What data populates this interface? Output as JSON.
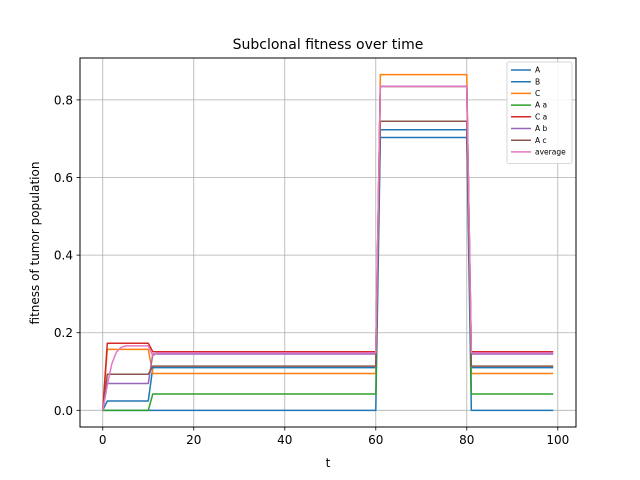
{
  "chart_data": {
    "type": "line",
    "title": "Subclonal fitness over time",
    "xlabel": "t",
    "ylabel": "fitness of tumor population",
    "xlim": [
      -5,
      104
    ],
    "ylim": [
      -0.043,
      0.908
    ],
    "xticks": [
      0,
      20,
      40,
      60,
      80,
      100
    ],
    "yticks": [
      0.0,
      0.2,
      0.4,
      0.6,
      0.8
    ],
    "ytick_labels": [
      "0.0",
      "0.2",
      "0.4",
      "0.6",
      "0.8"
    ],
    "grid": true,
    "legend_position": "top-right",
    "series": [
      {
        "name": "A",
        "color": "#1f77b4",
        "points": [
          [
            0,
            0
          ],
          [
            1,
            0.024
          ],
          [
            10,
            0.024
          ],
          [
            11,
            0.11
          ],
          [
            60,
            0.11
          ],
          [
            61,
            0.723
          ],
          [
            80,
            0.723
          ],
          [
            81,
            0.11
          ],
          [
            99,
            0.11
          ]
        ]
      },
      {
        "name": "B",
        "color": "#1f77b4",
        "points": [
          [
            0,
            0
          ],
          [
            1,
            0
          ],
          [
            60,
            0
          ],
          [
            61,
            0.703
          ],
          [
            80,
            0.703
          ],
          [
            81,
            0
          ],
          [
            99,
            0
          ]
        ]
      },
      {
        "name": "C",
        "color": "#ff7f0e",
        "points": [
          [
            0,
            0
          ],
          [
            1,
            0.157
          ],
          [
            10,
            0.157
          ],
          [
            11,
            0.095
          ],
          [
            60,
            0.095
          ],
          [
            61,
            0.865
          ],
          [
            80,
            0.865
          ],
          [
            81,
            0.095
          ],
          [
            99,
            0.095
          ]
        ]
      },
      {
        "name": "A a",
        "color": "#2ca02c",
        "points": [
          [
            0,
            0
          ],
          [
            10,
            0
          ],
          [
            11,
            0.042
          ],
          [
            60,
            0.042
          ],
          [
            61,
            0.835
          ],
          [
            80,
            0.835
          ],
          [
            81,
            0.042
          ],
          [
            99,
            0.042
          ]
        ]
      },
      {
        "name": "C a",
        "color": "#d62728",
        "points": [
          [
            0,
            0
          ],
          [
            1,
            0.173
          ],
          [
            10,
            0.173
          ],
          [
            11,
            0.151
          ],
          [
            60,
            0.151
          ],
          [
            61,
            0.835
          ],
          [
            80,
            0.835
          ],
          [
            81,
            0.151
          ],
          [
            99,
            0.151
          ]
        ]
      },
      {
        "name": "A b",
        "color": "#9467bd",
        "points": [
          [
            0,
            0
          ],
          [
            1,
            0.069
          ],
          [
            10,
            0.069
          ],
          [
            11,
            0.145
          ],
          [
            60,
            0.145
          ],
          [
            61,
            0.835
          ],
          [
            80,
            0.835
          ],
          [
            81,
            0.145
          ],
          [
            99,
            0.145
          ]
        ]
      },
      {
        "name": "A c",
        "color": "#8c564b",
        "points": [
          [
            0,
            0
          ],
          [
            1,
            0.093
          ],
          [
            10,
            0.093
          ],
          [
            11,
            0.114
          ],
          [
            60,
            0.114
          ],
          [
            61,
            0.745
          ],
          [
            80,
            0.745
          ],
          [
            81,
            0.114
          ],
          [
            99,
            0.114
          ]
        ]
      },
      {
        "name": "average",
        "color": "#e377c2",
        "points": [
          [
            0,
            0
          ],
          [
            1,
            0.065
          ],
          [
            2,
            0.12
          ],
          [
            3,
            0.15
          ],
          [
            4,
            0.162
          ],
          [
            5,
            0.166
          ],
          [
            10,
            0.166
          ],
          [
            11,
            0.14
          ],
          [
            12,
            0.148
          ],
          [
            60,
            0.148
          ],
          [
            61,
            0.835
          ],
          [
            80,
            0.835
          ],
          [
            81,
            0.148
          ],
          [
            99,
            0.148
          ]
        ]
      }
    ]
  }
}
